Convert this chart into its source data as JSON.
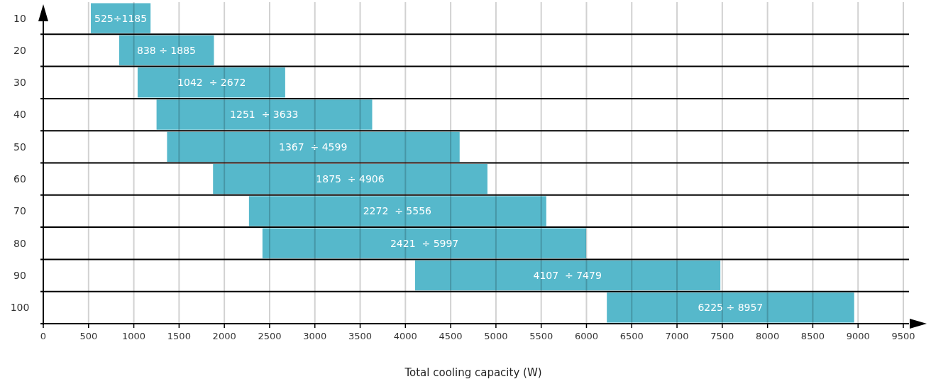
{
  "chart_data": {
    "type": "bar",
    "orientation": "horizontal",
    "xlabel": "Total cooling capacity (W)",
    "categories": [
      "10",
      "20",
      "30",
      "40",
      "50",
      "60",
      "70",
      "80",
      "90",
      "100"
    ],
    "base": [
      525,
      838,
      1042,
      1251,
      1367,
      1875,
      2272,
      2421,
      4107,
      6225
    ],
    "values": [
      660,
      1047,
      1630,
      2382,
      3232,
      3031,
      3284,
      3576,
      3372,
      2732
    ],
    "annotations": [
      {
        "text": "525÷1185",
        "x": 855,
        "y": "10"
      },
      {
        "text": "838 ÷ 1885",
        "x": 1360,
        "y": "20"
      },
      {
        "text": "1042  ÷ 2672",
        "x": 1860,
        "y": "30"
      },
      {
        "text": "1251  ÷ 3633",
        "x": 2440,
        "y": "40"
      },
      {
        "text": "1367  ÷ 4599",
        "x": 2980,
        "y": "50"
      },
      {
        "text": "1875  ÷ 4906",
        "x": 3390,
        "y": "60"
      },
      {
        "text": "2272  ÷ 5556",
        "x": 3910,
        "y": "70"
      },
      {
        "text": "2421  ÷ 5997",
        "x": 4210,
        "y": "80"
      },
      {
        "text": "4107  ÷ 7479",
        "x": 5790,
        "y": "90"
      },
      {
        "text": "6225 ÷ 8957",
        "x": 7590,
        "y": "100"
      }
    ],
    "color": "#56b8cb",
    "xlim": [
      0,
      9500
    ],
    "xticks": [
      0,
      500,
      1000,
      1500,
      2000,
      2500,
      3000,
      3500,
      4000,
      4500,
      5000,
      5500,
      6000,
      6500,
      7000,
      7500,
      8000,
      8500,
      9000,
      9500
    ],
    "grid": true
  }
}
